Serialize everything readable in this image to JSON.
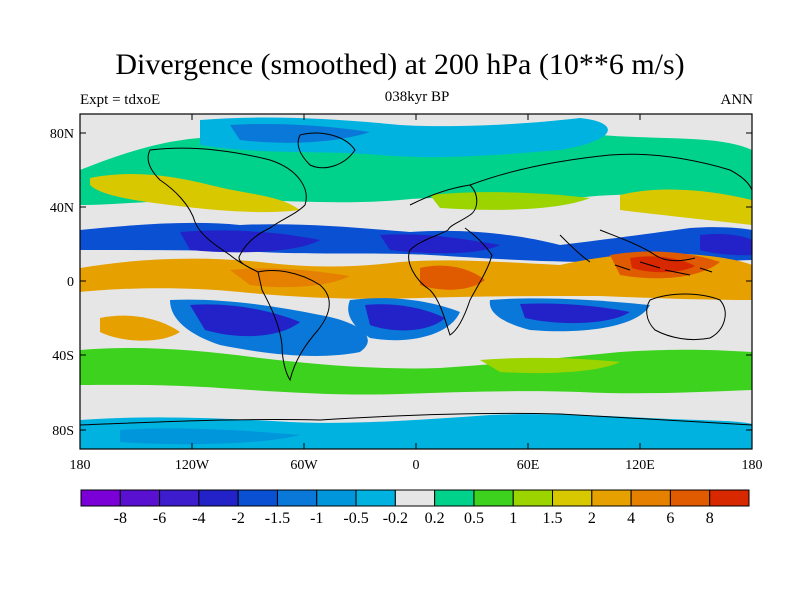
{
  "title": "Divergence (smoothed) at 200 hPa (10**6 m/s)",
  "left_subtitle": "Expt = tdxoE",
  "center_subtitle": "038kyr BP",
  "right_subtitle": "ANN",
  "lat_ticks": [
    "80N",
    "40N",
    "0",
    "40S",
    "80S"
  ],
  "lon_ticks": [
    "180",
    "120W",
    "60W",
    "0",
    "60E",
    "120E",
    "180"
  ],
  "colorbar": {
    "labels": [
      "-8",
      "-6",
      "-4",
      "-2",
      "-1.5",
      "-1",
      "-0.5",
      "-0.2",
      "0.2",
      "0.5",
      "1",
      "1.5",
      "2",
      "4",
      "6",
      "8"
    ],
    "colors": [
      "#7b00d8",
      "#5a10d0",
      "#3c1ccc",
      "#2222c8",
      "#0a50d2",
      "#0a78d8",
      "#0096dc",
      "#00b2e0",
      "#e6e6e6",
      "#00d28c",
      "#3cd21e",
      "#9cd400",
      "#d8c800",
      "#e6a000",
      "#e68000",
      "#e05a00",
      "#d82800"
    ]
  },
  "map_colors": {
    "neutral": "#e6e6e6",
    "land_outline": "#000000",
    "ocean_frame": "#000000"
  }
}
